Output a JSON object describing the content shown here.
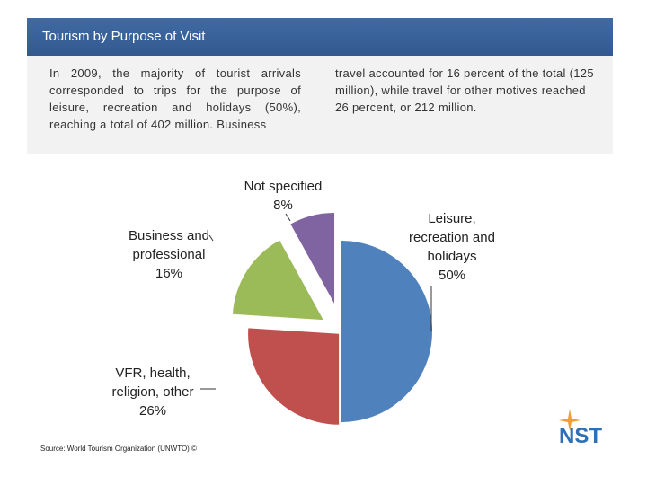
{
  "header": {
    "title": "Tourism by Purpose of Visit"
  },
  "text_columns": [
    "In 2009, the majority of tourist arrivals corresponded to trips for the purpose of leisure, recreation and holidays (50%), reaching a total of 402 million. Business",
    "travel accounted for 16 percent of the total (125 million), while travel for other motives reached 26 percent, or 212 million."
  ],
  "chart_data": {
    "type": "pie",
    "categories": [
      "Leisure, recreation and holidays",
      "VFR, health, religion, other",
      "Business and professional",
      "Not specified"
    ],
    "values": [
      50,
      26,
      16,
      8
    ],
    "value_labels": [
      "50%",
      "26%",
      "16%",
      "8%"
    ],
    "colors": [
      "#4f81bd",
      "#c0504d",
      "#9bbb59",
      "#8064a2"
    ]
  },
  "source": "Source: World Tourism Organization (UNWTO) ©",
  "logo": {
    "text": "NST"
  }
}
